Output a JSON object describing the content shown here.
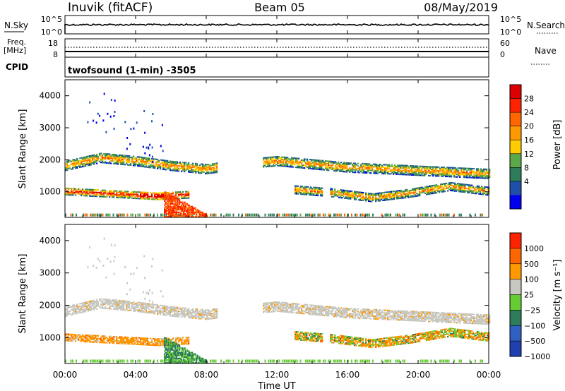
{
  "header": {
    "station": "Inuvik (fitACF)",
    "beam": "Beam 05",
    "date": "08/May/2019"
  },
  "nsky_panel": {
    "label": "N.Sky",
    "left_ticks": [
      "10^5",
      "10^0"
    ],
    "right_ticks": [
      "10^5",
      "10^0"
    ],
    "right_label": "N.Search"
  },
  "freq_panel": {
    "label_line1": "Freq.",
    "label_line2": "[MHz]",
    "left_ticks": [
      "18",
      "8"
    ],
    "right_ticks": [
      "60",
      "0"
    ],
    "right_label": "Nave"
  },
  "cpid": {
    "label": "CPID",
    "value": "twofsound (1-min) -3505"
  },
  "power_panel": {
    "ylabel": "Slant Range [km]",
    "y_ticks": [
      "4000",
      "3000",
      "2000",
      "1000"
    ],
    "colorbar_label": "Power [dB]",
    "colorbar_ticks": [
      "28",
      "24",
      "20",
      "16",
      "12",
      "8",
      "4"
    ],
    "colors": [
      "#0000ee",
      "#1f4fa8",
      "#2e7d5a",
      "#5aa84a",
      "#ffcc00",
      "#ff9900",
      "#ff6600",
      "#ff2200",
      "#dd0000"
    ]
  },
  "velocity_panel": {
    "ylabel": "Slant Range [km]",
    "y_ticks": [
      "4000",
      "3000",
      "2000",
      "1000"
    ],
    "colorbar_label": "Velocity [m s⁻¹]",
    "colorbar_ticks": [
      "1000",
      "500",
      "100",
      "25",
      "−25",
      "−100",
      "−500",
      "−1000"
    ],
    "colors": [
      "#2040b0",
      "#3060c0",
      "#2e7d5a",
      "#66cc33",
      "#c8c8c0",
      "#ff9900",
      "#ff6600",
      "#ff2200"
    ]
  },
  "x_axis": {
    "ticks": [
      "00:00",
      "04:00",
      "08:00",
      "12:00",
      "16:00",
      "20:00",
      "00:00"
    ],
    "label": "Time UT"
  },
  "chart_data": [
    {
      "type": "heatmap",
      "title": "Power [dB]",
      "ylabel": "Slant Range [km]",
      "xlabel": "Time UT",
      "xlim": [
        0,
        24
      ],
      "ylim": [
        200,
        4500
      ],
      "clim": [
        0,
        30
      ],
      "bands": [
        {
          "name": "main-echo",
          "t_start": 0.0,
          "t_end": 24.0,
          "range_center": [
            1800,
            2050,
            1950,
            1800,
            1700,
            1850,
            1950,
            1850,
            1750,
            1700,
            1650,
            1600,
            1550
          ],
          "width": 300,
          "power": 16
        },
        {
          "name": "low-echo",
          "t_start": 0.0,
          "t_end": 7.0,
          "range_center": [
            1000,
            950,
            900,
            850,
            900
          ],
          "width": 220,
          "power": 22
        },
        {
          "name": "afternoon-echo",
          "t_start": 13.0,
          "t_end": 24.0,
          "range_center": [
            1050,
            950,
            800,
            950,
            1150,
            1000
          ],
          "width": 250,
          "power": 16
        }
      ]
    },
    {
      "type": "heatmap",
      "title": "Velocity [m s⁻¹]",
      "ylabel": "Slant Range [km]",
      "xlabel": "Time UT",
      "xlim": [
        0,
        24
      ],
      "ylim": [
        200,
        4500
      ],
      "clim": [
        -1000,
        1000
      ]
    }
  ]
}
